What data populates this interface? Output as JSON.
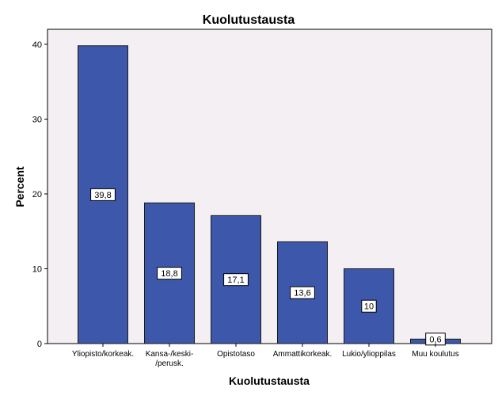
{
  "chart_data": {
    "type": "bar",
    "title": "Kuolutustausta",
    "xlabel": "Kuolutustausta",
    "ylabel": "Percent",
    "ylim": [
      0,
      42
    ],
    "yticks": [
      0,
      10,
      20,
      30,
      40
    ],
    "grid": false,
    "categories": [
      [
        "Yliopisto/korkeak."
      ],
      [
        "Kansa-/keski-",
        "/perusk."
      ],
      [
        "Opistotaso"
      ],
      [
        "Ammattikorkeak."
      ],
      [
        "Lukio/ylioppilas"
      ],
      [
        "Muu koulutus"
      ]
    ],
    "values": [
      39.8,
      18.8,
      17.1,
      13.6,
      10,
      0.6
    ],
    "data_labels": [
      "39,8",
      "18,8",
      "17,1",
      "13,6",
      "10",
      "0,6"
    ],
    "colors": {
      "bar_fill": "#3d58aa",
      "bar_stroke": "#1a1a1a",
      "plot_background": "#f4eff3"
    }
  }
}
